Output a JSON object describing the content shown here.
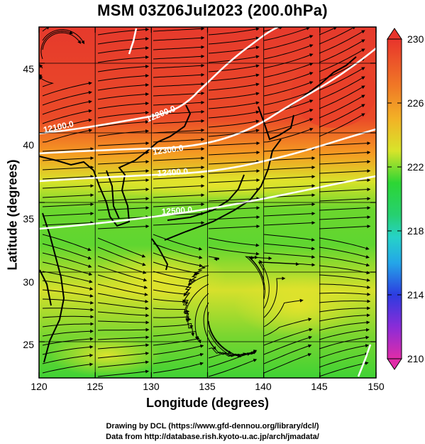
{
  "title": "MSM 03Z06Jul2023 (200.0hPa)",
  "x_axis": {
    "label": "Longitude (degrees)",
    "ticks": [
      "120",
      "125",
      "130",
      "135",
      "140",
      "145",
      "150"
    ],
    "range": [
      120,
      150
    ]
  },
  "y_axis": {
    "label": "Latitude  (degrees)",
    "ticks": [
      "25",
      "30",
      "35",
      "40",
      "45"
    ],
    "range": [
      22.4,
      47.6
    ]
  },
  "colorbar": {
    "ticks": [
      "230",
      "226",
      "222",
      "218",
      "214",
      "210"
    ],
    "range": [
      210,
      230
    ],
    "units_hint": "temperature"
  },
  "contours": [
    {
      "label": "12100.0",
      "value": 12100
    },
    {
      "label": "12200.0",
      "value": 12200
    },
    {
      "label": "12300.0",
      "value": 12300
    },
    {
      "label": "12400.0",
      "value": 12400
    },
    {
      "label": "12500.0",
      "value": 12500
    }
  ],
  "credits": {
    "line1": "Drawing by DCL (https://www.gfd-dennou.org/library/dcl/)",
    "line2": "Data from http://database.rish.kyoto-u.ac.jp/arch/jmadata/"
  },
  "colors": {
    "warm": "#e83a2a",
    "mid": "#e8e02a",
    "cool": "#2ad23a",
    "contour": "#ffffff"
  }
}
